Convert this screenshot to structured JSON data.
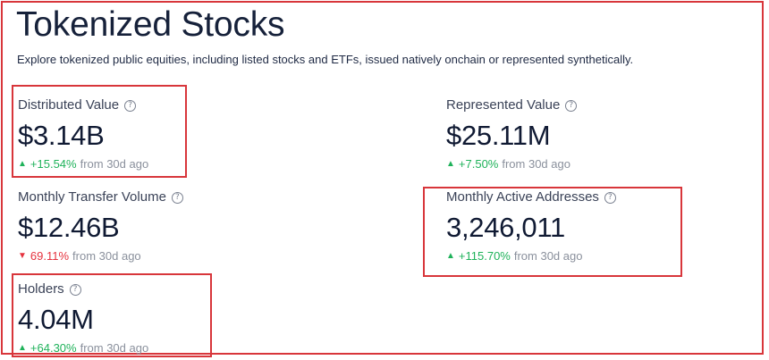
{
  "header": {
    "title": "Tokenized Stocks",
    "subtitle": "Explore tokenized public equities, including listed stocks and ETFs, issued natively onchain or represented synthetically."
  },
  "stats": {
    "distributed_value": {
      "label": "Distributed Value",
      "value": "$3.14B",
      "change": "+15.54%",
      "direction": "up",
      "period": "from 30d ago"
    },
    "represented_value": {
      "label": "Represented Value",
      "value": "$25.11M",
      "change": "+7.50%",
      "direction": "up",
      "period": "from 30d ago"
    },
    "monthly_transfer_volume": {
      "label": "Monthly Transfer Volume",
      "value": "$12.46B",
      "change": "69.11%",
      "direction": "down",
      "period": "from 30d ago"
    },
    "monthly_active_addresses": {
      "label": "Monthly Active Addresses",
      "value": "3,246,011",
      "change": "+115.70%",
      "direction": "up",
      "period": "from 30d ago"
    },
    "holders": {
      "label": "Holders",
      "value": "4.04M",
      "change": "+64.30%",
      "direction": "up",
      "period": "from 30d ago"
    }
  },
  "icons": {
    "help": "?",
    "up": "▲",
    "down": "▼"
  },
  "colors": {
    "positive": "#1fb25a",
    "negative": "#e5323e",
    "highlight": "#d8363b"
  }
}
